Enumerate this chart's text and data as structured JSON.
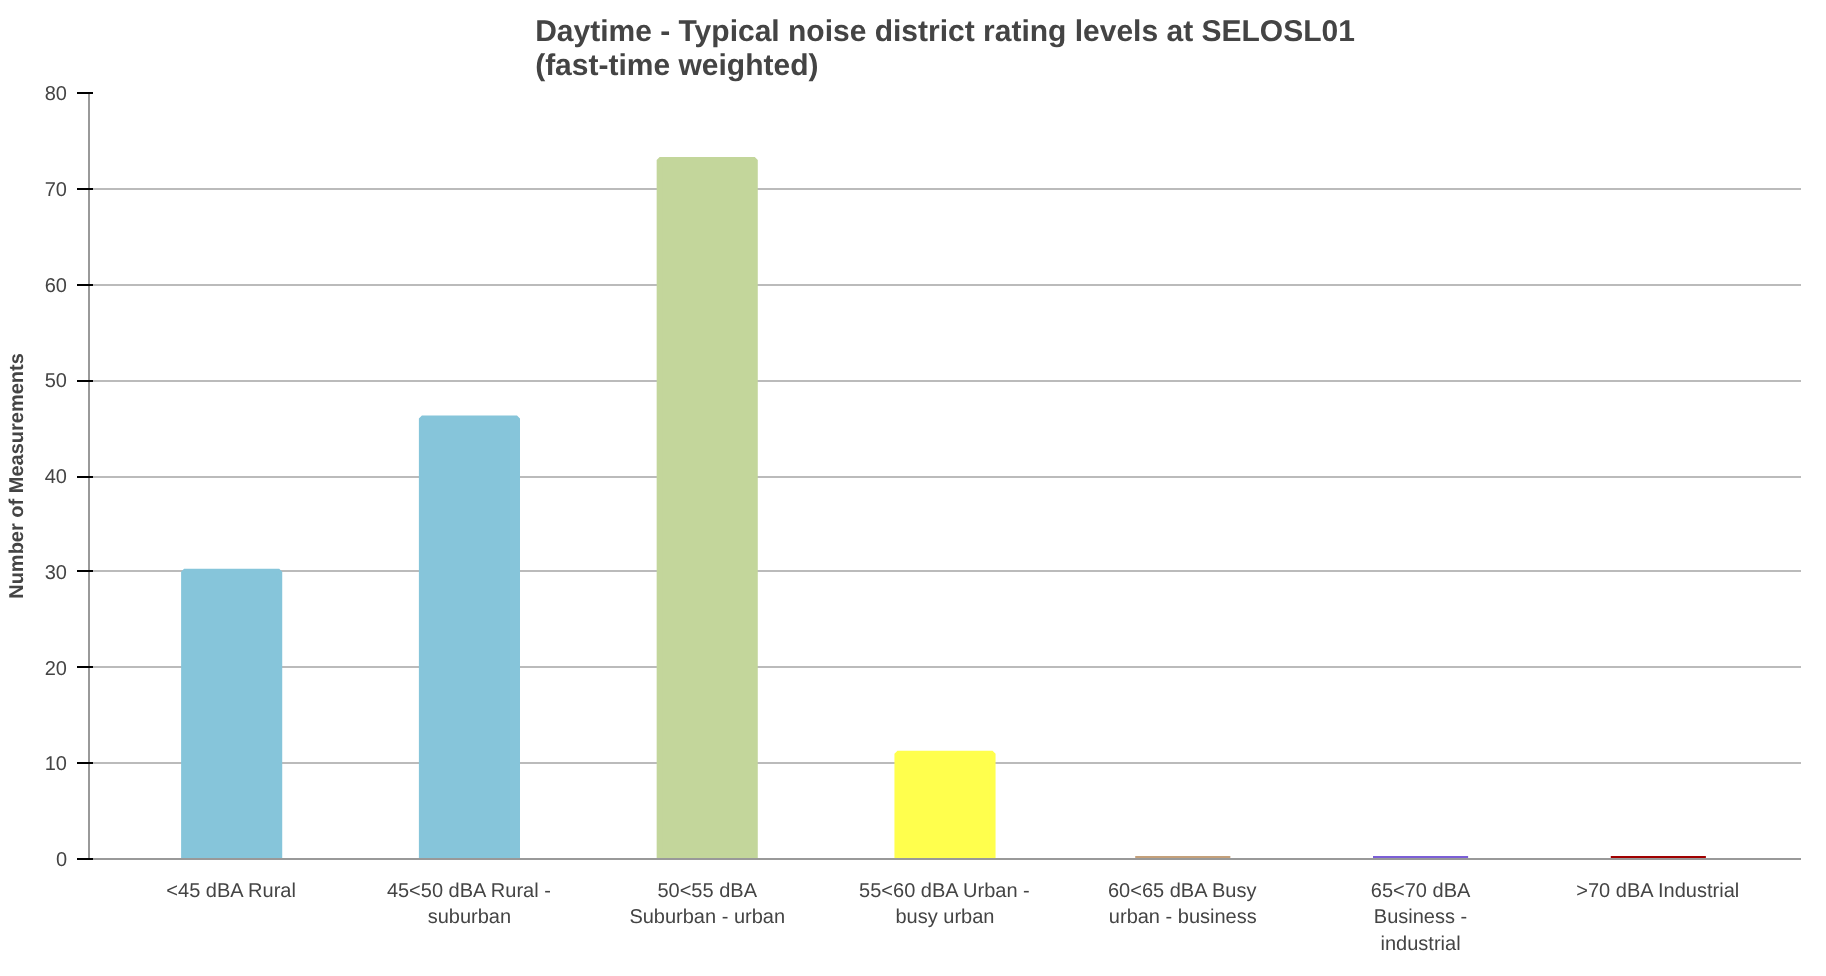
{
  "chart_data": {
    "type": "bar",
    "title": "Daytime - Typical noise district rating levels at SELOSL01\n(fast-time weighted)",
    "ylabel": "Number of Measurements",
    "categories": [
      "<45 dBA Rural",
      "45<50 dBA Rural -\nsuburban",
      "50<55 dBA\nSuburban - urban",
      "55<60 dBA Urban -\nbusy urban",
      "60<65 dBA Busy\nurban - business",
      "65<70 dBA\nBusiness -\nindustrial",
      ">70 dBA Industrial"
    ],
    "values": [
      30,
      46,
      73,
      11,
      0,
      0,
      0
    ],
    "colors": [
      "#86c5da",
      "#86c5da",
      "#c3d69b",
      "#ffff4d",
      "#c4a07a",
      "#7b5fd6",
      "#a00000"
    ],
    "ylim": [
      0,
      80
    ],
    "yticks": [
      0,
      10,
      20,
      30,
      40,
      50,
      60,
      70,
      80
    ],
    "grid": "y"
  }
}
